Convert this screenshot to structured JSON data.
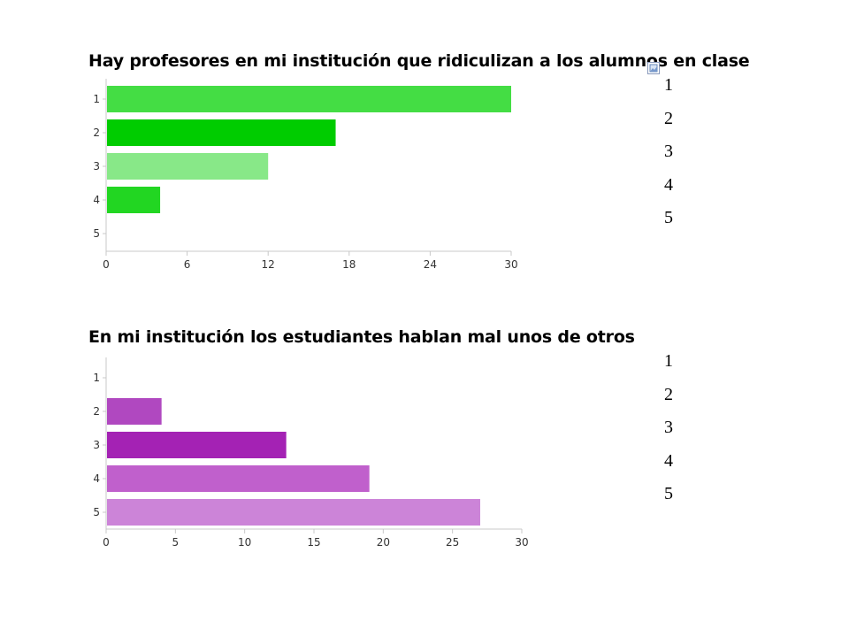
{
  "chart_data": [
    {
      "type": "bar",
      "orientation": "horizontal",
      "title": "Hay profesores en mi institución que ridiculizan a los alumnos en clase",
      "categories": [
        "1",
        "2",
        "3",
        "4",
        "5"
      ],
      "values": [
        30,
        17,
        12,
        4,
        0
      ],
      "bar_colors": [
        "#44dd44",
        "#00cc00",
        "#88e888",
        "#22d622",
        "#44dd44"
      ],
      "xlim": [
        0,
        30
      ],
      "xticks": [
        0,
        6,
        12,
        18,
        24,
        30
      ],
      "xlabel": "",
      "ylabel": "",
      "grid": false,
      "side_list": [
        "1",
        "2",
        "3",
        "4",
        "5"
      ]
    },
    {
      "type": "bar",
      "orientation": "horizontal",
      "title": "En mi institución los estudiantes hablan mal unos de otros",
      "categories": [
        "1",
        "2",
        "3",
        "4",
        "5"
      ],
      "values": [
        0,
        4,
        13,
        19,
        27
      ],
      "bar_colors": [
        "#b048c0",
        "#b048c0",
        "#a422b4",
        "#c060cc",
        "#cc84d8"
      ],
      "xlim": [
        0,
        30
      ],
      "xticks": [
        0,
        5,
        10,
        15,
        20,
        25,
        30
      ],
      "xlabel": "",
      "ylabel": "",
      "grid": false,
      "side_list": [
        "1",
        "2",
        "3",
        "4",
        "5"
      ]
    }
  ],
  "icons": {
    "placeholder": "picture-placeholder-icon"
  }
}
